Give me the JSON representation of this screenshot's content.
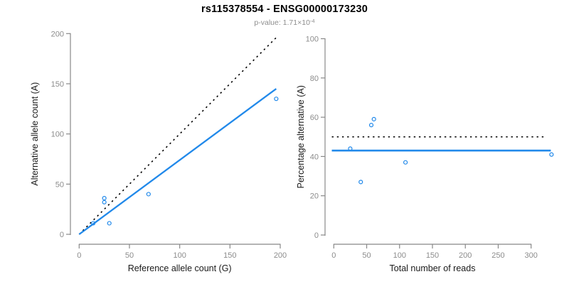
{
  "header": {
    "title": "rs115378554 - ENSG00000173230",
    "pvalue_prefix": "p-value: 1.71×10",
    "pvalue_exponent": "-4"
  },
  "colors": {
    "accent_blue": "#2189EA",
    "dotted_line_black": "#000000",
    "axis_gray": "#888888",
    "tick_label_gray": "#8C8C8C",
    "axis_title_color": "#1A1A1A",
    "subtitle_gray": "#8E8E8E"
  },
  "chart_data": [
    {
      "type": "scatter",
      "panel": "left",
      "xlabel": "Reference allele count (G)",
      "ylabel": "Alternative allele count (A)",
      "xlim": [
        0,
        200
      ],
      "ylim": [
        0,
        200
      ],
      "xticks": [
        0,
        50,
        100,
        150,
        200
      ],
      "yticks": [
        0,
        50,
        100,
        150,
        200
      ],
      "grid": false,
      "point_color": "#2189EA",
      "points": [
        [
          14,
          11
        ],
        [
          30,
          11
        ],
        [
          25,
          32
        ],
        [
          25,
          36
        ],
        [
          69,
          40
        ],
        [
          196,
          135
        ]
      ],
      "lines": [
        {
          "name": "identity-line",
          "style": "dotted",
          "color": "#000000",
          "width": 1.6,
          "x1": 0,
          "y1": 0,
          "x2": 196,
          "y2": 196
        },
        {
          "name": "fit-line",
          "style": "solid",
          "color": "#2189EA",
          "width": 2.3,
          "x1": 0,
          "y1": 0,
          "x2": 196,
          "y2": 145
        }
      ]
    },
    {
      "type": "scatter",
      "panel": "right",
      "xlabel": "Total number of reads",
      "ylabel": "Percentage alternative (A)",
      "xlim": [
        0,
        330
      ],
      "ylim": [
        0,
        100
      ],
      "xticks": [
        0,
        50,
        100,
        150,
        200,
        250,
        300
      ],
      "yticks": [
        0,
        20,
        40,
        60,
        80,
        100
      ],
      "grid": false,
      "point_color": "#2189EA",
      "points": [
        [
          25,
          44
        ],
        [
          41,
          27
        ],
        [
          57,
          56
        ],
        [
          61,
          59
        ],
        [
          109,
          37
        ],
        [
          331,
          41
        ]
      ],
      "lines": [
        {
          "name": "fifty-percent-line",
          "style": "dotted",
          "color": "#000000",
          "width": 1.6,
          "x1": -3,
          "y1": 50,
          "x2": 323,
          "y2": 50
        },
        {
          "name": "mean-percentage-line",
          "style": "solid",
          "color": "#2189EA",
          "width": 2.6,
          "x1": -3,
          "y1": 43,
          "x2": 330,
          "y2": 43
        }
      ]
    }
  ]
}
